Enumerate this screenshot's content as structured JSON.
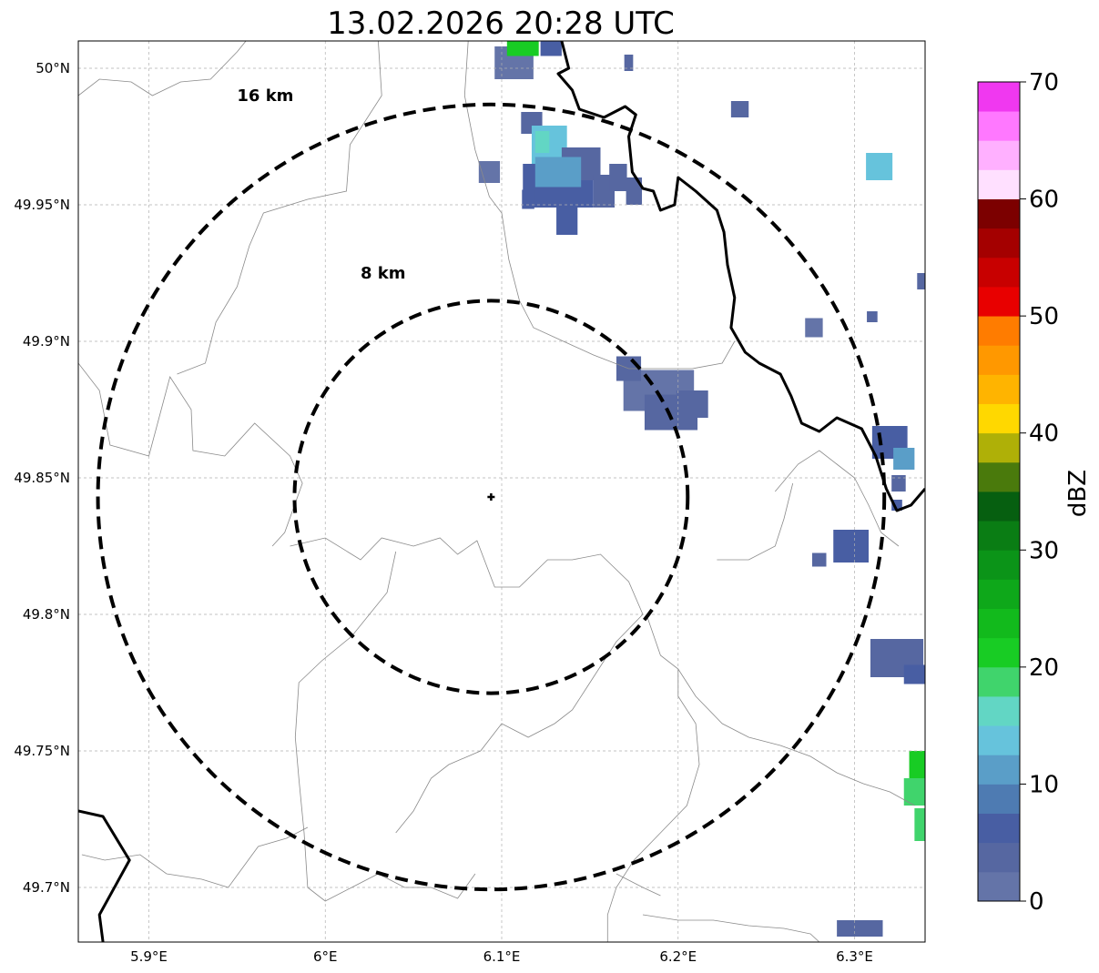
{
  "title": "13.02.2026 20:28 UTC",
  "map": {
    "lon_range": [
      5.86,
      6.34
    ],
    "lat_range": [
      49.68,
      50.01
    ],
    "x_ticks": [
      {
        "value": 5.9,
        "label": "5.9°E"
      },
      {
        "value": 6.0,
        "label": "6°E"
      },
      {
        "value": 6.1,
        "label": "6.1°E"
      },
      {
        "value": 6.2,
        "label": "6.2°E"
      },
      {
        "value": 6.3,
        "label": "6.3°E"
      }
    ],
    "y_ticks": [
      {
        "value": 50.0,
        "label": "50°N"
      },
      {
        "value": 49.95,
        "label": "49.95°N"
      },
      {
        "value": 49.9,
        "label": "49.9°N"
      },
      {
        "value": 49.85,
        "label": "49.85°N"
      },
      {
        "value": 49.8,
        "label": "49.8°N"
      },
      {
        "value": 49.75,
        "label": "49.75°N"
      },
      {
        "value": 49.7,
        "label": "49.7°N"
      }
    ],
    "grid": true,
    "center": {
      "lon": 6.094,
      "lat": 49.843
    },
    "rings": [
      {
        "km": 8,
        "label": "8 km",
        "label_pos": {
          "lon": 6.02,
          "lat": 49.923
        }
      },
      {
        "km": 16,
        "label": "16 km",
        "label_pos": {
          "lon": 5.95,
          "lat": 49.988
        }
      }
    ],
    "national_borders": [
      [
        [
          6.134,
          50.01
        ],
        [
          6.138,
          50.0
        ],
        [
          6.132,
          49.998
        ],
        [
          6.14,
          49.992
        ],
        [
          6.144,
          49.985
        ],
        [
          6.158,
          49.982
        ],
        [
          6.17,
          49.986
        ],
        [
          6.176,
          49.983
        ],
        [
          6.172,
          49.975
        ],
        [
          6.174,
          49.962
        ],
        [
          6.18,
          49.956
        ],
        [
          6.186,
          49.955
        ],
        [
          6.19,
          49.948
        ],
        [
          6.198,
          49.95
        ],
        [
          6.2,
          49.96
        ],
        [
          6.21,
          49.955
        ],
        [
          6.222,
          49.948
        ],
        [
          6.226,
          49.94
        ],
        [
          6.228,
          49.928
        ],
        [
          6.232,
          49.916
        ],
        [
          6.23,
          49.905
        ],
        [
          6.238,
          49.896
        ],
        [
          6.246,
          49.892
        ],
        [
          6.258,
          49.888
        ],
        [
          6.264,
          49.88
        ],
        [
          6.27,
          49.87
        ],
        [
          6.28,
          49.867
        ],
        [
          6.29,
          49.872
        ],
        [
          6.304,
          49.868
        ],
        [
          6.312,
          49.858
        ],
        [
          6.318,
          49.846
        ],
        [
          6.324,
          49.838
        ],
        [
          6.332,
          49.84
        ],
        [
          6.34,
          49.846
        ]
      ],
      [
        [
          5.86,
          49.728
        ],
        [
          5.874,
          49.726
        ],
        [
          5.889,
          49.71
        ],
        [
          5.872,
          49.69
        ],
        [
          5.874,
          49.68
        ]
      ]
    ],
    "regional_borders": [
      [
        [
          5.86,
          49.99
        ],
        [
          5.872,
          49.996
        ],
        [
          5.89,
          49.995
        ],
        [
          5.902,
          49.99
        ],
        [
          5.918,
          49.995
        ],
        [
          5.935,
          49.996
        ],
        [
          5.95,
          50.006
        ],
        [
          5.955,
          50.01
        ]
      ],
      [
        [
          6.03,
          50.01
        ],
        [
          6.032,
          49.99
        ],
        [
          6.014,
          49.972
        ],
        [
          6.012,
          49.955
        ],
        [
          5.99,
          49.952
        ],
        [
          5.965,
          49.947
        ],
        [
          5.957,
          49.935
        ],
        [
          5.95,
          49.92
        ],
        [
          5.938,
          49.907
        ],
        [
          5.932,
          49.892
        ],
        [
          5.916,
          49.888
        ]
      ],
      [
        [
          5.86,
          49.892
        ],
        [
          5.872,
          49.882
        ],
        [
          5.878,
          49.862
        ],
        [
          5.9,
          49.858
        ],
        [
          5.912,
          49.887
        ],
        [
          5.924,
          49.875
        ],
        [
          5.925,
          49.86
        ],
        [
          5.943,
          49.858
        ],
        [
          5.96,
          49.87
        ],
        [
          5.98,
          49.858
        ],
        [
          5.987,
          49.848
        ],
        [
          5.977,
          49.83
        ],
        [
          5.97,
          49.825
        ]
      ],
      [
        [
          6.081,
          50.01
        ],
        [
          6.079,
          49.99
        ],
        [
          6.085,
          49.97
        ],
        [
          6.093,
          49.953
        ],
        [
          6.1,
          49.947
        ],
        [
          6.104,
          49.93
        ],
        [
          6.11,
          49.915
        ],
        [
          6.118,
          49.905
        ],
        [
          6.135,
          49.9
        ],
        [
          6.152,
          49.895
        ],
        [
          6.172,
          49.89
        ],
        [
          6.19,
          49.89
        ],
        [
          6.208,
          49.89
        ],
        [
          6.225,
          49.892
        ],
        [
          6.232,
          49.9
        ]
      ],
      [
        [
          5.98,
          49.825
        ],
        [
          6.0,
          49.828
        ],
        [
          6.02,
          49.82
        ],
        [
          6.032,
          49.828
        ],
        [
          6.05,
          49.825
        ],
        [
          6.065,
          49.828
        ],
        [
          6.075,
          49.822
        ],
        [
          6.086,
          49.827
        ],
        [
          6.096,
          49.81
        ],
        [
          6.11,
          49.81
        ],
        [
          6.126,
          49.82
        ],
        [
          6.14,
          49.82
        ],
        [
          6.156,
          49.822
        ],
        [
          6.172,
          49.812
        ],
        [
          6.18,
          49.8
        ]
      ],
      [
        [
          6.04,
          49.823
        ],
        [
          6.035,
          49.808
        ],
        [
          6.015,
          49.792
        ],
        [
          5.998,
          49.783
        ],
        [
          5.985,
          49.775
        ],
        [
          5.983,
          49.755
        ],
        [
          5.985,
          49.74
        ],
        [
          5.988,
          49.72
        ],
        [
          5.99,
          49.7
        ],
        [
          6.0,
          49.695
        ],
        [
          6.015,
          49.7
        ],
        [
          6.03,
          49.705
        ],
        [
          6.045,
          49.7
        ],
        [
          6.06,
          49.7
        ],
        [
          6.075,
          49.696
        ],
        [
          6.085,
          49.705
        ]
      ],
      [
        [
          5.862,
          49.712
        ],
        [
          5.875,
          49.71
        ],
        [
          5.895,
          49.712
        ],
        [
          5.91,
          49.705
        ],
        [
          5.93,
          49.703
        ],
        [
          5.945,
          49.7
        ],
        [
          5.962,
          49.715
        ],
        [
          5.978,
          49.718
        ],
        [
          5.99,
          49.722
        ]
      ],
      [
        [
          6.18,
          49.8
        ],
        [
          6.165,
          49.79
        ],
        [
          6.15,
          49.775
        ],
        [
          6.14,
          49.765
        ],
        [
          6.13,
          49.76
        ],
        [
          6.115,
          49.755
        ],
        [
          6.1,
          49.76
        ],
        [
          6.088,
          49.75
        ],
        [
          6.07,
          49.745
        ],
        [
          6.06,
          49.74
        ],
        [
          6.05,
          49.728
        ],
        [
          6.04,
          49.72
        ]
      ],
      [
        [
          6.255,
          49.845
        ],
        [
          6.268,
          49.855
        ],
        [
          6.28,
          49.86
        ],
        [
          6.29,
          49.855
        ],
        [
          6.3,
          49.85
        ],
        [
          6.308,
          49.84
        ],
        [
          6.315,
          49.83
        ],
        [
          6.325,
          49.825
        ]
      ],
      [
        [
          6.182,
          49.8
        ],
        [
          6.19,
          49.785
        ],
        [
          6.2,
          49.78
        ],
        [
          6.21,
          49.77
        ],
        [
          6.225,
          49.76
        ],
        [
          6.24,
          49.755
        ],
        [
          6.258,
          49.752
        ],
        [
          6.275,
          49.748
        ],
        [
          6.29,
          49.742
        ],
        [
          6.305,
          49.738
        ],
        [
          6.32,
          49.735
        ],
        [
          6.334,
          49.73
        ]
      ],
      [
        [
          6.222,
          49.82
        ],
        [
          6.24,
          49.82
        ],
        [
          6.255,
          49.825
        ],
        [
          6.26,
          49.835
        ],
        [
          6.265,
          49.848
        ]
      ],
      [
        [
          6.2,
          49.78
        ],
        [
          6.2,
          49.77
        ],
        [
          6.21,
          49.76
        ],
        [
          6.212,
          49.745
        ],
        [
          6.205,
          49.73
        ],
        [
          6.19,
          49.72
        ],
        [
          6.175,
          49.71
        ],
        [
          6.165,
          49.7
        ],
        [
          6.16,
          49.69
        ],
        [
          6.16,
          49.68
        ]
      ],
      [
        [
          6.18,
          49.69
        ],
        [
          6.2,
          49.688
        ],
        [
          6.22,
          49.688
        ],
        [
          6.24,
          49.686
        ],
        [
          6.26,
          49.685
        ],
        [
          6.275,
          49.683
        ],
        [
          6.28,
          49.68
        ]
      ],
      [
        [
          6.165,
          49.705
        ],
        [
          6.18,
          49.7
        ],
        [
          6.19,
          49.697
        ]
      ]
    ],
    "echoes": [
      {
        "lon": 6.107,
        "lat": 50.002,
        "w": 0.022,
        "h": 0.012,
        "dbz": 1
      },
      {
        "lon": 6.112,
        "lat": 50.008,
        "w": 0.018,
        "h": 0.007,
        "dbz": 22
      },
      {
        "lon": 6.128,
        "lat": 50.008,
        "w": 0.012,
        "h": 0.007,
        "dbz": 6
      },
      {
        "lon": 6.117,
        "lat": 49.98,
        "w": 0.012,
        "h": 0.008,
        "dbz": 4
      },
      {
        "lon": 6.127,
        "lat": 49.972,
        "w": 0.02,
        "h": 0.014,
        "dbz": 13
      },
      {
        "lon": 6.123,
        "lat": 49.973,
        "w": 0.008,
        "h": 0.008,
        "dbz": 16
      },
      {
        "lon": 6.132,
        "lat": 49.957,
        "w": 0.04,
        "h": 0.016,
        "dbz": 5
      },
      {
        "lon": 6.145,
        "lat": 49.965,
        "w": 0.022,
        "h": 0.012,
        "dbz": 4
      },
      {
        "lon": 6.132,
        "lat": 49.962,
        "w": 0.026,
        "h": 0.011,
        "dbz": 12
      },
      {
        "lon": 6.158,
        "lat": 49.955,
        "w": 0.012,
        "h": 0.012,
        "dbz": 3
      },
      {
        "lon": 6.166,
        "lat": 49.96,
        "w": 0.01,
        "h": 0.01,
        "dbz": 3
      },
      {
        "lon": 6.137,
        "lat": 49.945,
        "w": 0.012,
        "h": 0.012,
        "dbz": 5
      },
      {
        "lon": 6.093,
        "lat": 49.962,
        "w": 0.012,
        "h": 0.008,
        "dbz": 1
      },
      {
        "lon": 6.115,
        "lat": 49.952,
        "w": 0.007,
        "h": 0.007,
        "dbz": 5
      },
      {
        "lon": 6.175,
        "lat": 49.955,
        "w": 0.009,
        "h": 0.01,
        "dbz": 3
      },
      {
        "lon": 6.172,
        "lat": 50.002,
        "w": 0.005,
        "h": 0.006,
        "dbz": 4
      },
      {
        "lon": 6.235,
        "lat": 49.985,
        "w": 0.01,
        "h": 0.006,
        "dbz": 3
      },
      {
        "lon": 6.314,
        "lat": 49.964,
        "w": 0.015,
        "h": 0.01,
        "dbz": 14
      },
      {
        "lon": 6.338,
        "lat": 49.922,
        "w": 0.005,
        "h": 0.006,
        "dbz": 4
      },
      {
        "lon": 6.31,
        "lat": 49.909,
        "w": 0.006,
        "h": 0.004,
        "dbz": 4
      },
      {
        "lon": 6.277,
        "lat": 49.905,
        "w": 0.01,
        "h": 0.007,
        "dbz": 2
      },
      {
        "lon": 6.189,
        "lat": 49.882,
        "w": 0.04,
        "h": 0.015,
        "dbz": 2
      },
      {
        "lon": 6.196,
        "lat": 49.874,
        "w": 0.03,
        "h": 0.013,
        "dbz": 3
      },
      {
        "lon": 6.172,
        "lat": 49.89,
        "w": 0.014,
        "h": 0.009,
        "dbz": 4
      },
      {
        "lon": 6.208,
        "lat": 49.877,
        "w": 0.018,
        "h": 0.01,
        "dbz": 4
      },
      {
        "lon": 6.32,
        "lat": 49.863,
        "w": 0.02,
        "h": 0.012,
        "dbz": 5
      },
      {
        "lon": 6.328,
        "lat": 49.857,
        "w": 0.012,
        "h": 0.008,
        "dbz": 10
      },
      {
        "lon": 6.325,
        "lat": 49.848,
        "w": 0.008,
        "h": 0.006,
        "dbz": 4
      },
      {
        "lon": 6.324,
        "lat": 49.84,
        "w": 0.006,
        "h": 0.004,
        "dbz": 5
      },
      {
        "lon": 6.298,
        "lat": 49.825,
        "w": 0.02,
        "h": 0.012,
        "dbz": 5
      },
      {
        "lon": 6.28,
        "lat": 49.82,
        "w": 0.008,
        "h": 0.005,
        "dbz": 4
      },
      {
        "lon": 6.324,
        "lat": 49.784,
        "w": 0.03,
        "h": 0.014,
        "dbz": 4
      },
      {
        "lon": 6.334,
        "lat": 49.778,
        "w": 0.012,
        "h": 0.007,
        "dbz": 5
      },
      {
        "lon": 6.336,
        "lat": 49.745,
        "w": 0.01,
        "h": 0.01,
        "dbz": 22
      },
      {
        "lon": 6.334,
        "lat": 49.735,
        "w": 0.012,
        "h": 0.01,
        "dbz": 18
      },
      {
        "lon": 6.337,
        "lat": 49.723,
        "w": 0.006,
        "h": 0.012,
        "dbz": 19
      },
      {
        "lon": 6.303,
        "lat": 49.685,
        "w": 0.026,
        "h": 0.006,
        "dbz": 4
      }
    ]
  },
  "colorbar": {
    "label": "dBZ",
    "min": 0,
    "max": 70,
    "step": 2.5,
    "ticks": [
      {
        "value": 0,
        "label": "0"
      },
      {
        "value": 10,
        "label": "10"
      },
      {
        "value": 20,
        "label": "20"
      },
      {
        "value": 30,
        "label": "30"
      },
      {
        "value": 40,
        "label": "40"
      },
      {
        "value": 50,
        "label": "50"
      },
      {
        "value": 60,
        "label": "60"
      },
      {
        "value": 70,
        "label": "70"
      }
    ],
    "colors": [
      "#6474a8",
      "#5667a1",
      "#485ea3",
      "#4e7bb2",
      "#5a9ec8",
      "#66c3dc",
      "#62d6c4",
      "#40d46c",
      "#18cc24",
      "#12ba1c",
      "#0ea81a",
      "#0b9418",
      "#0a7d14",
      "#065f10",
      "#4a7a0c",
      "#afb007",
      "#ffd800",
      "#ffb400",
      "#ff9800",
      "#ff7c00",
      "#e80000",
      "#c80000",
      "#a40000",
      "#7c0000",
      "#ffe0ff",
      "#ffb0ff",
      "#ff78ff",
      "#f038f0"
    ]
  }
}
